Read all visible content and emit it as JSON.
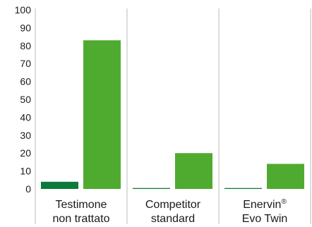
{
  "chart_data": {
    "type": "bar",
    "categories": [
      [
        "Testimone",
        "non trattato"
      ],
      [
        "Competitor",
        "standard"
      ],
      [
        "Enervin",
        "Evo Twin"
      ]
    ],
    "trademark": "®",
    "series": [
      {
        "values": [
          4,
          0.5,
          0.5
        ],
        "color": "#0b7a3b"
      },
      {
        "values": [
          83,
          20,
          14
        ],
        "color": "#4fab2f"
      }
    ],
    "yticks": [
      0,
      10,
      20,
      30,
      40,
      50,
      60,
      70,
      80,
      90,
      100
    ],
    "ylim": [
      0,
      100
    ],
    "grid": false,
    "separator_color": "#bbbbbb"
  }
}
